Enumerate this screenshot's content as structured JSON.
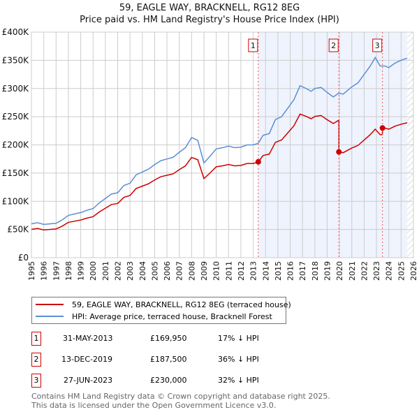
{
  "chart_data": {
    "type": "line",
    "title": "59, EAGLE WAY, BRACKNELL, RG12 8EG",
    "subtitle": "Price paid vs. HM Land Registry's House Price Index (HPI)",
    "xlim": [
      1995,
      2026
    ],
    "ylim": [
      0,
      400000
    ],
    "y_ticks": [
      {
        "v": 0,
        "label": "£0"
      },
      {
        "v": 50000,
        "label": "£50K"
      },
      {
        "v": 100000,
        "label": "£100K"
      },
      {
        "v": 150000,
        "label": "£150K"
      },
      {
        "v": 200000,
        "label": "£200K"
      },
      {
        "v": 250000,
        "label": "£250K"
      },
      {
        "v": 300000,
        "label": "£300K"
      },
      {
        "v": 350000,
        "label": "£350K"
      },
      {
        "v": 400000,
        "label": "£400K"
      }
    ],
    "x_ticks": [
      "1995",
      "1996",
      "1997",
      "1998",
      "1999",
      "2000",
      "2001",
      "2002",
      "2003",
      "2004",
      "2005",
      "2006",
      "2007",
      "2008",
      "2009",
      "2010",
      "2011",
      "2012",
      "2013",
      "2014",
      "2015",
      "2016",
      "2017",
      "2018",
      "2019",
      "2020",
      "2021",
      "2022",
      "2023",
      "2024",
      "2025",
      "2026"
    ],
    "grid": true,
    "shaded_from": 2013.41,
    "forecast_from": 2025.5,
    "colors": {
      "property": "#cc0000",
      "hpi": "#5b8fd4",
      "shade": "#eef3fd"
    },
    "hpi": {
      "x": [
        1995,
        1995.5,
        1996,
        1997,
        1997.5,
        1998,
        1999,
        1999.5,
        2000,
        2000.5,
        2001,
        2001.5,
        2002,
        2002.5,
        2003,
        2003.5,
        2004,
        2004.5,
        2005,
        2005.5,
        2006,
        2006.5,
        2007,
        2007.5,
        2008,
        2008.5,
        2009,
        2009.5,
        2010,
        2010.5,
        2011,
        2011.5,
        2012,
        2012.5,
        2013,
        2013.41,
        2013.8,
        2014.3,
        2014.8,
        2015.3,
        2015.8,
        2016.3,
        2016.8,
        2017.3,
        2017.7,
        2018,
        2018.5,
        2019,
        2019.5,
        2019.95,
        2020.3,
        2021,
        2021.5,
        2022,
        2022.5,
        2022.9,
        2023.3,
        2023.7,
        2024,
        2024.5,
        2025,
        2025.5
      ],
      "y": [
        60000,
        62000,
        59000,
        61000,
        67000,
        75000,
        80000,
        84000,
        87000,
        97000,
        105000,
        113000,
        115000,
        128000,
        132000,
        147000,
        152000,
        157000,
        165000,
        172000,
        175000,
        178000,
        187000,
        195000,
        213000,
        208000,
        168000,
        180000,
        193000,
        195000,
        198000,
        195000,
        196000,
        200000,
        200000,
        203000,
        217000,
        220000,
        245000,
        250000,
        265000,
        280000,
        305000,
        300000,
        295000,
        300000,
        302000,
        293000,
        285000,
        292000,
        290000,
        303000,
        310000,
        325000,
        340000,
        355000,
        340000,
        340000,
        337000,
        345000,
        350000,
        354000
      ]
    },
    "property_series": {
      "name": "59, EAGLE WAY, BRACKNELL, RG12 8EG (terraced house)",
      "factors": [
        {
          "until": 2019.95,
          "f": 0.835
        },
        {
          "until": 2023.49,
          "f": 0.642
        },
        {
          "until": 2026,
          "f": 0.676
        }
      ]
    },
    "sales": [
      {
        "n": "1",
        "x": 2013.41,
        "y": 169950
      },
      {
        "n": "2",
        "x": 2019.95,
        "y": 187500
      },
      {
        "n": "3",
        "x": 2023.49,
        "y": 230000
      }
    ]
  },
  "legend": {
    "property": "59, EAGLE WAY, BRACKNELL, RG12 8EG (terraced house)",
    "hpi": "HPI: Average price, terraced house, Bracknell Forest"
  },
  "transactions": [
    {
      "n": "1",
      "date": "31-MAY-2013",
      "price": "£169,950",
      "diff": "17% ↓ HPI"
    },
    {
      "n": "2",
      "date": "13-DEC-2019",
      "price": "£187,500",
      "diff": "36% ↓ HPI"
    },
    {
      "n": "3",
      "date": "27-JUN-2023",
      "price": "£230,000",
      "diff": "32% ↓ HPI"
    }
  ],
  "footer": {
    "line1": "Contains HM Land Registry data © Crown copyright and database right 2025.",
    "line2": "This data is licensed under the Open Government Licence v3.0."
  }
}
